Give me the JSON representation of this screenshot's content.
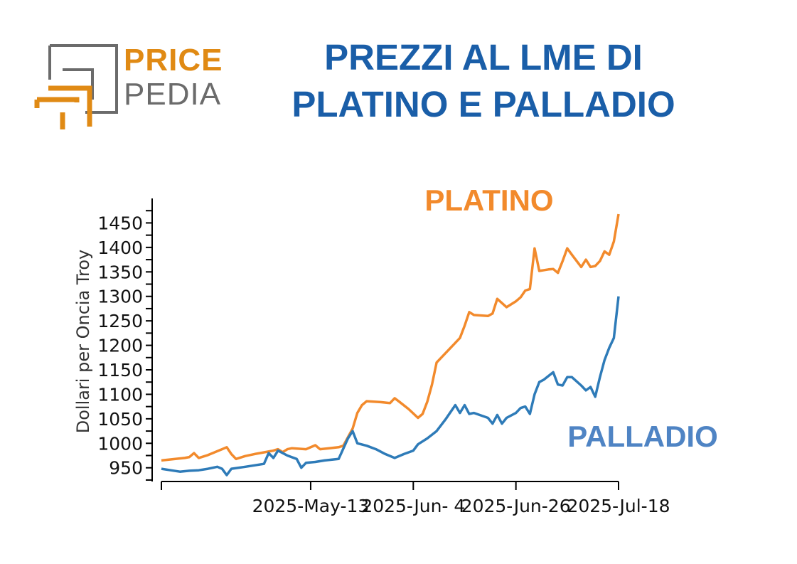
{
  "header": {
    "logo_word_1": "PRICE",
    "logo_word_2": "PEDIA",
    "title_line_1": "PREZZI AL LME DI",
    "title_line_2": "PLATINO E PALLADIO"
  },
  "colors": {
    "title": "#1a5ea8",
    "platino": "#f28a2c",
    "palladio": "#2e7bb8",
    "palladio_label": "#4f84c4",
    "logo_orange": "#e08a14",
    "logo_gray": "#6b6b6b"
  },
  "chart_data": {
    "type": "line",
    "title": "",
    "xlabel": "",
    "ylabel": "Dollari per Oncia Troy",
    "ylim": [
      922,
      1500
    ],
    "yticks": [
      950,
      1000,
      1050,
      1100,
      1150,
      1200,
      1250,
      1300,
      1350,
      1400,
      1450
    ],
    "x_start": "2025-Apr-11",
    "x_end": "2025-Jul-18",
    "xticks": [
      {
        "label": "",
        "date": "2025-Apr-11"
      },
      {
        "label": "2025-May-13",
        "date": "2025-May-13"
      },
      {
        "label": "2025-Jun- 4",
        "date": "2025-Jun-04"
      },
      {
        "label": "2025-Jun-26",
        "date": "2025-Jun-26"
      },
      {
        "label": "2025-Jul-18",
        "date": "2025-Jul-18"
      }
    ],
    "grid": false,
    "series": [
      {
        "name": "PLATINO",
        "points": [
          [
            "2025-Apr-11",
            965
          ],
          [
            "2025-Apr-14",
            968
          ],
          [
            "2025-Apr-16",
            970
          ],
          [
            "2025-Apr-17",
            972
          ],
          [
            "2025-Apr-18",
            980
          ],
          [
            "2025-Apr-19",
            970
          ],
          [
            "2025-Apr-21",
            976
          ],
          [
            "2025-Apr-24",
            988
          ],
          [
            "2025-Apr-25",
            992
          ],
          [
            "2025-Apr-26",
            978
          ],
          [
            "2025-Apr-27",
            968
          ],
          [
            "2025-Apr-29",
            974
          ],
          [
            "2025-May-01",
            978
          ],
          [
            "2025-May-05",
            985
          ],
          [
            "2025-May-06",
            988
          ],
          [
            "2025-May-07",
            982
          ],
          [
            "2025-May-08",
            988
          ],
          [
            "2025-May-09",
            990
          ],
          [
            "2025-May-12",
            988
          ],
          [
            "2025-May-14",
            996
          ],
          [
            "2025-May-15",
            988
          ],
          [
            "2025-May-17",
            990
          ],
          [
            "2025-May-19",
            992
          ],
          [
            "2025-May-20",
            995
          ],
          [
            "2025-May-22",
            1030
          ],
          [
            "2025-May-23",
            1062
          ],
          [
            "2025-May-24",
            1078
          ],
          [
            "2025-May-25",
            1086
          ],
          [
            "2025-May-28",
            1084
          ],
          [
            "2025-May-30",
            1082
          ],
          [
            "2025-May-31",
            1092
          ],
          [
            "2025-Jun-01",
            1085
          ],
          [
            "2025-Jun-03",
            1070
          ],
          [
            "2025-Jun-05",
            1052
          ],
          [
            "2025-Jun-06",
            1060
          ],
          [
            "2025-Jun-07",
            1085
          ],
          [
            "2025-Jun-08",
            1120
          ],
          [
            "2025-Jun-09",
            1165
          ],
          [
            "2025-Jun-11",
            1185
          ],
          [
            "2025-Jun-13",
            1205
          ],
          [
            "2025-Jun-14",
            1215
          ],
          [
            "2025-Jun-15",
            1240
          ],
          [
            "2025-Jun-16",
            1268
          ],
          [
            "2025-Jun-17",
            1262
          ],
          [
            "2025-Jun-20",
            1260
          ],
          [
            "2025-Jun-21",
            1265
          ],
          [
            "2025-Jun-22",
            1295
          ],
          [
            "2025-Jun-24",
            1278
          ],
          [
            "2025-Jun-26",
            1290
          ],
          [
            "2025-Jun-27",
            1298
          ],
          [
            "2025-Jun-28",
            1312
          ],
          [
            "2025-Jun-29",
            1315
          ],
          [
            "2025-Jun-30",
            1398
          ],
          [
            "2025-Jul-01",
            1352
          ],
          [
            "2025-Jul-03",
            1355
          ],
          [
            "2025-Jul-04",
            1356
          ],
          [
            "2025-Jul-05",
            1348
          ],
          [
            "2025-Jul-06",
            1372
          ],
          [
            "2025-Jul-07",
            1398
          ],
          [
            "2025-Jul-08",
            1385
          ],
          [
            "2025-Jul-10",
            1360
          ],
          [
            "2025-Jul-11",
            1375
          ],
          [
            "2025-Jul-12",
            1360
          ],
          [
            "2025-Jul-13",
            1362
          ],
          [
            "2025-Jul-14",
            1372
          ],
          [
            "2025-Jul-15",
            1392
          ],
          [
            "2025-Jul-16",
            1385
          ],
          [
            "2025-Jul-17",
            1412
          ],
          [
            "2025-Jul-18",
            1468
          ]
        ]
      },
      {
        "name": "PALLADIO",
        "points": [
          [
            "2025-Apr-11",
            948
          ],
          [
            "2025-Apr-13",
            945
          ],
          [
            "2025-Apr-15",
            942
          ],
          [
            "2025-Apr-17",
            944
          ],
          [
            "2025-Apr-19",
            945
          ],
          [
            "2025-Apr-21",
            948
          ],
          [
            "2025-Apr-23",
            952
          ],
          [
            "2025-Apr-24",
            948
          ],
          [
            "2025-Apr-25",
            935
          ],
          [
            "2025-Apr-26",
            948
          ],
          [
            "2025-Apr-29",
            952
          ],
          [
            "2025-May-03",
            958
          ],
          [
            "2025-May-04",
            980
          ],
          [
            "2025-May-05",
            970
          ],
          [
            "2025-May-06",
            985
          ],
          [
            "2025-May-08",
            975
          ],
          [
            "2025-May-10",
            968
          ],
          [
            "2025-May-11",
            950
          ],
          [
            "2025-May-12",
            960
          ],
          [
            "2025-May-14",
            962
          ],
          [
            "2025-May-16",
            965
          ],
          [
            "2025-May-19",
            968
          ],
          [
            "2025-May-21",
            1010
          ],
          [
            "2025-May-22",
            1025
          ],
          [
            "2025-May-23",
            1000
          ],
          [
            "2025-May-25",
            995
          ],
          [
            "2025-May-27",
            988
          ],
          [
            "2025-May-29",
            978
          ],
          [
            "2025-May-31",
            970
          ],
          [
            "2025-Jun-02",
            978
          ],
          [
            "2025-Jun-04",
            985
          ],
          [
            "2025-Jun-05",
            998
          ],
          [
            "2025-Jun-07",
            1010
          ],
          [
            "2025-Jun-09",
            1025
          ],
          [
            "2025-Jun-11",
            1050
          ],
          [
            "2025-Jun-13",
            1078
          ],
          [
            "2025-Jun-14",
            1062
          ],
          [
            "2025-Jun-15",
            1078
          ],
          [
            "2025-Jun-16",
            1060
          ],
          [
            "2025-Jun-17",
            1062
          ],
          [
            "2025-Jun-20",
            1052
          ],
          [
            "2025-Jun-21",
            1040
          ],
          [
            "2025-Jun-22",
            1058
          ],
          [
            "2025-Jun-23",
            1040
          ],
          [
            "2025-Jun-24",
            1052
          ],
          [
            "2025-Jun-26",
            1062
          ],
          [
            "2025-Jun-27",
            1072
          ],
          [
            "2025-Jun-28",
            1075
          ],
          [
            "2025-Jun-29",
            1060
          ],
          [
            "2025-Jun-30",
            1100
          ],
          [
            "2025-Jul-01",
            1125
          ],
          [
            "2025-Jul-02",
            1130
          ],
          [
            "2025-Jul-04",
            1145
          ],
          [
            "2025-Jul-05",
            1120
          ],
          [
            "2025-Jul-06",
            1118
          ],
          [
            "2025-Jul-07",
            1135
          ],
          [
            "2025-Jul-08",
            1135
          ],
          [
            "2025-Jul-10",
            1118
          ],
          [
            "2025-Jul-11",
            1108
          ],
          [
            "2025-Jul-12",
            1115
          ],
          [
            "2025-Jul-13",
            1095
          ],
          [
            "2025-Jul-14",
            1135
          ],
          [
            "2025-Jul-15",
            1170
          ],
          [
            "2025-Jul-16",
            1195
          ],
          [
            "2025-Jul-17",
            1215
          ],
          [
            "2025-Jul-18",
            1300
          ]
        ]
      }
    ],
    "series_labels": {
      "platino": "PLATINO",
      "palladio": "PALLADIO"
    }
  }
}
